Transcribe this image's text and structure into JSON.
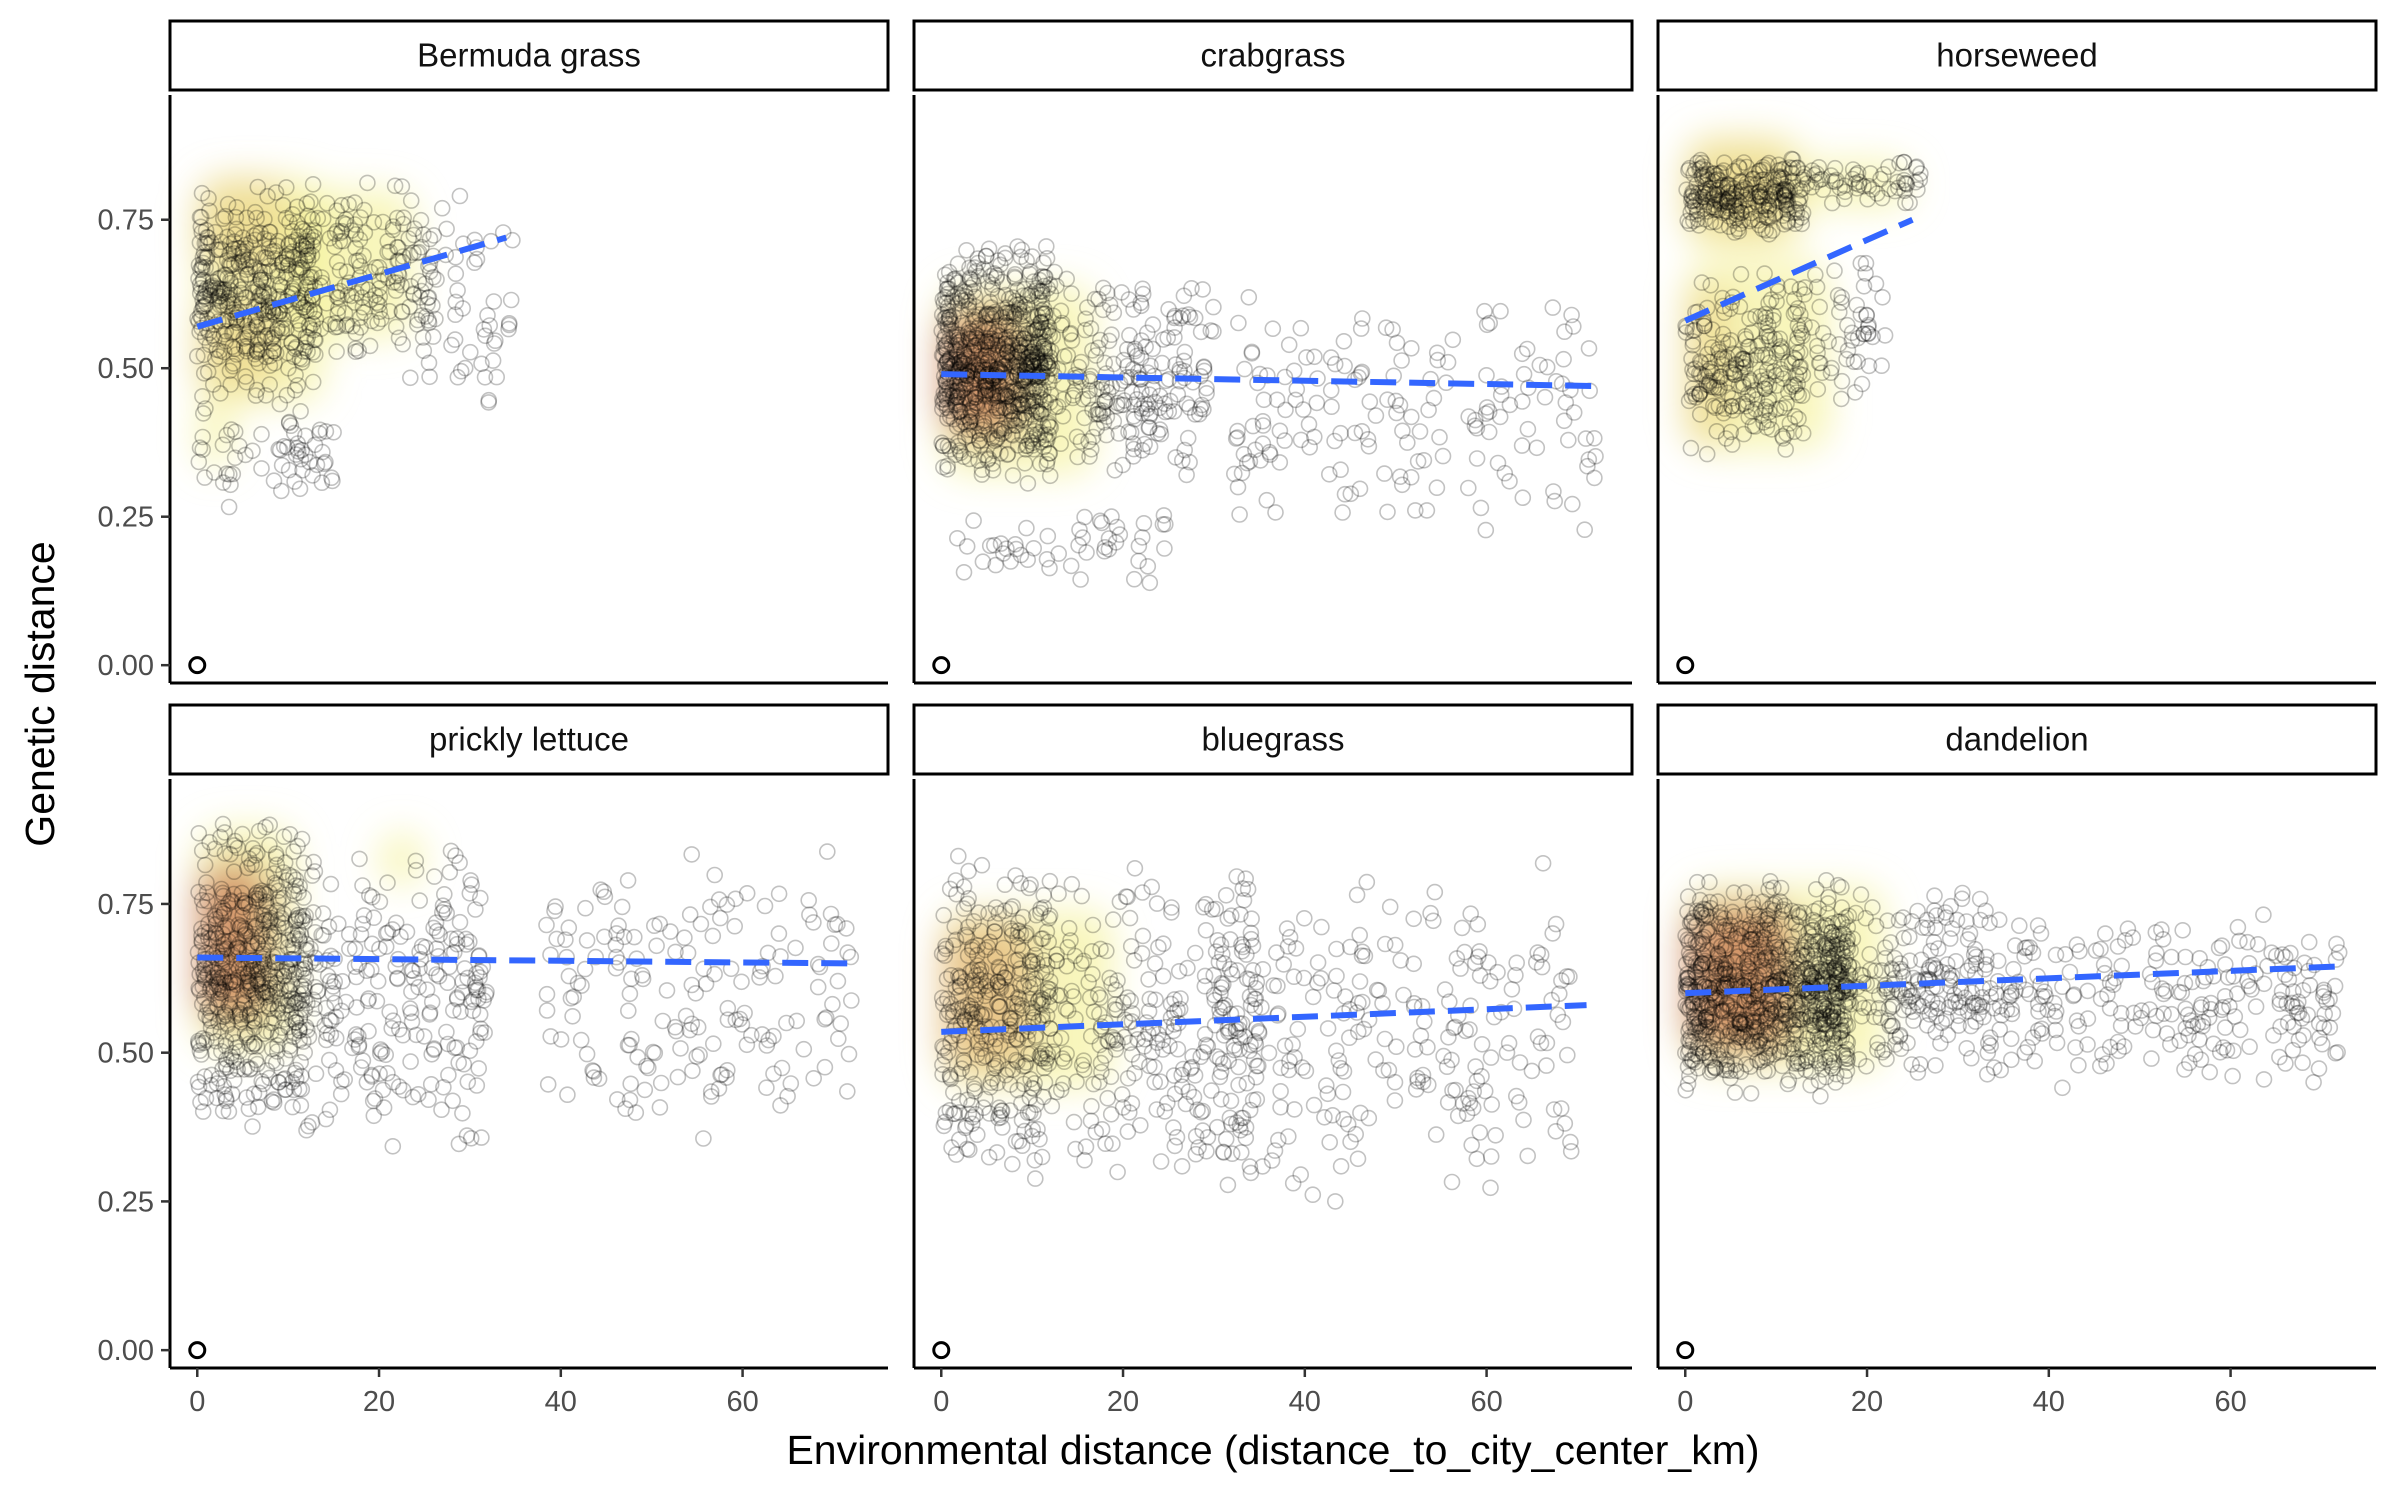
{
  "chart_data": {
    "type": "scatter",
    "xlabel": "Environmental distance (distance_to_city_center_km)",
    "ylabel": "Genetic distance",
    "xlim": [
      -3,
      76
    ],
    "ylim": [
      -0.03,
      0.96
    ],
    "x_ticks": [
      "0",
      "20",
      "40",
      "60"
    ],
    "x_tick_values": [
      0,
      20,
      40,
      60
    ],
    "y_ticks": [
      "0.00",
      "0.25",
      "0.50",
      "0.75"
    ],
    "y_tick_values": [
      0,
      0.25,
      0.5,
      0.75
    ],
    "grid": false,
    "layout": "facet grid, 2 rows x 3 columns",
    "colors": {
      "points": "#000000",
      "density_low": "#f2ef84",
      "density_high": "#b03a1c",
      "trend": "#3366ff"
    },
    "panels": [
      {
        "label": "Bermuda grass",
        "seed": 11,
        "trend": {
          "x": [
            0,
            34
          ],
          "y": [
            0.57,
            0.72
          ]
        },
        "clusters": [
          {
            "n": 420,
            "x": [
              0,
              13
            ],
            "y": [
              0.42,
              0.82
            ]
          },
          {
            "n": 160,
            "x": [
              12,
              26
            ],
            "y": [
              0.48,
              0.82
            ]
          },
          {
            "n": 60,
            "x": [
              22,
              35
            ],
            "y": [
              0.42,
              0.82
            ]
          },
          {
            "n": 60,
            "x": [
              0,
              15
            ],
            "y": [
              0.26,
              0.44
            ]
          }
        ],
        "density": [
          {
            "x": [
              0,
              10
            ],
            "y": [
              0.66,
              0.82
            ],
            "level": 1
          },
          {
            "x": [
              0,
              9
            ],
            "y": [
              0.46,
              0.62
            ],
            "level": 1
          },
          {
            "x": [
              0,
              14
            ],
            "y": [
              0.44,
              0.82
            ],
            "level": 0
          },
          {
            "x": [
              10,
              24
            ],
            "y": [
              0.55,
              0.8
            ],
            "level": 0
          },
          {
            "x": [
              0,
              4
            ],
            "y": [
              0.33,
              0.45
            ],
            "level": 0
          }
        ],
        "origin": [
          0,
          0
        ]
      },
      {
        "label": "crabgrass",
        "seed": 23,
        "trend": {
          "x": [
            0,
            72
          ],
          "y": [
            0.49,
            0.47
          ]
        },
        "clusters": [
          {
            "n": 700,
            "x": [
              0,
              12
            ],
            "y": [
              0.3,
              0.72
            ]
          },
          {
            "n": 240,
            "x": [
              10,
              30
            ],
            "y": [
              0.3,
              0.68
            ]
          },
          {
            "n": 170,
            "x": [
              32,
              72
            ],
            "y": [
              0.22,
              0.62
            ]
          },
          {
            "n": 50,
            "x": [
              0,
              25
            ],
            "y": [
              0.12,
              0.28
            ]
          }
        ],
        "density": [
          {
            "x": [
              0,
              17
            ],
            "y": [
              0.32,
              0.64
            ],
            "level": 0
          },
          {
            "x": [
              0,
              9
            ],
            "y": [
              0.38,
              0.6
            ],
            "level": 2
          }
        ],
        "origin": [
          0,
          0
        ]
      },
      {
        "label": "horseweed",
        "seed": 37,
        "trend": {
          "x": [
            0,
            25
          ],
          "y": [
            0.58,
            0.75
          ]
        },
        "clusters": [
          {
            "n": 260,
            "x": [
              0,
              13
            ],
            "y": [
              0.72,
              0.86
            ]
          },
          {
            "n": 60,
            "x": [
              13,
              26
            ],
            "y": [
              0.76,
              0.86
            ]
          },
          {
            "n": 230,
            "x": [
              0,
              13
            ],
            "y": [
              0.35,
              0.68
            ]
          },
          {
            "n": 60,
            "x": [
              12,
              22
            ],
            "y": [
              0.42,
              0.7
            ]
          }
        ],
        "density": [
          {
            "x": [
              0,
              12
            ],
            "y": [
              0.72,
              0.88
            ],
            "level": 1
          },
          {
            "x": [
              0,
              13
            ],
            "y": [
              0.7,
              0.89
            ],
            "level": 0
          },
          {
            "x": [
              12,
              25
            ],
            "y": [
              0.77,
              0.85
            ],
            "level": 0
          },
          {
            "x": [
              0,
              5
            ],
            "y": [
              0.37,
              0.64
            ],
            "level": 1
          },
          {
            "x": [
              0,
              16
            ],
            "y": [
              0.36,
              0.68
            ],
            "level": 0
          }
        ],
        "origin": [
          0,
          0
        ]
      },
      {
        "label": "prickly lettuce",
        "seed": 41,
        "trend": {
          "x": [
            0,
            72
          ],
          "y": [
            0.66,
            0.65
          ]
        },
        "clusters": [
          {
            "n": 520,
            "x": [
              0,
              12
            ],
            "y": [
              0.36,
              0.9
            ]
          },
          {
            "n": 240,
            "x": [
              12,
              32
            ],
            "y": [
              0.33,
              0.88
            ]
          },
          {
            "n": 170,
            "x": [
              38,
              72
            ],
            "y": [
              0.3,
              0.85
            ]
          }
        ],
        "density": [
          {
            "x": [
              0,
              11
            ],
            "y": [
              0.5,
              0.88
            ],
            "level": 0
          },
          {
            "x": [
              0,
              8
            ],
            "y": [
              0.55,
              0.82
            ],
            "level": 2
          },
          {
            "x": [
              20,
              25
            ],
            "y": [
              0.78,
              0.87
            ],
            "level": 0
          }
        ],
        "origin": [
          0,
          0
        ]
      },
      {
        "label": "bluegrass",
        "seed": 53,
        "trend": {
          "x": [
            0,
            71
          ],
          "y": [
            0.535,
            0.58
          ]
        },
        "clusters": [
          {
            "n": 330,
            "x": [
              0,
              12
            ],
            "y": [
              0.28,
              0.86
            ]
          },
          {
            "n": 280,
            "x": [
              10,
              35
            ],
            "y": [
              0.25,
              0.84
            ]
          },
          {
            "n": 250,
            "x": [
              30,
              70
            ],
            "y": [
              0.24,
              0.82
            ]
          }
        ],
        "density": [
          {
            "x": [
              0,
              19
            ],
            "y": [
              0.44,
              0.74
            ],
            "level": 0
          },
          {
            "x": [
              0,
              10
            ],
            "y": [
              0.47,
              0.72
            ],
            "level": 1
          }
        ],
        "origin": [
          0,
          0
        ]
      },
      {
        "label": "dandelion",
        "seed": 67,
        "trend": {
          "x": [
            0,
            72
          ],
          "y": [
            0.6,
            0.645
          ]
        },
        "clusters": [
          {
            "n": 800,
            "x": [
              0,
              18
            ],
            "y": [
              0.42,
              0.8
            ]
          },
          {
            "n": 260,
            "x": [
              15,
              35
            ],
            "y": [
              0.44,
              0.78
            ]
          },
          {
            "n": 230,
            "x": [
              35,
              72
            ],
            "y": [
              0.42,
              0.76
            ]
          }
        ],
        "density": [
          {
            "x": [
              0,
              22
            ],
            "y": [
              0.47,
              0.78
            ],
            "level": 0
          },
          {
            "x": [
              0,
              12
            ],
            "y": [
              0.5,
              0.75
            ],
            "level": 2
          }
        ],
        "origin": [
          0,
          0
        ]
      }
    ]
  }
}
